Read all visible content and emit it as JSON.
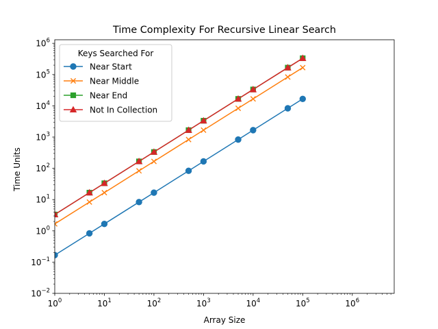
{
  "chart_data": {
    "type": "line",
    "title": "Time Complexity For Recursive Linear Search",
    "xlabel": "Array Size",
    "ylabel": "Time Units",
    "x_scale": "log",
    "y_scale": "log",
    "xlim": [
      1,
      7000000
    ],
    "ylim": [
      0.01,
      1300000
    ],
    "grid": false,
    "legend": {
      "title": "Keys Searched For",
      "placement": "upper-left"
    },
    "x_ticks": [
      {
        "value": 1,
        "base": "10",
        "exp": "0"
      },
      {
        "value": 10,
        "base": "10",
        "exp": "1"
      },
      {
        "value": 100,
        "base": "10",
        "exp": "2"
      },
      {
        "value": 1000,
        "base": "10",
        "exp": "3"
      },
      {
        "value": 10000,
        "base": "10",
        "exp": "4"
      },
      {
        "value": 100000,
        "base": "10",
        "exp": "5"
      },
      {
        "value": 1000000,
        "base": "10",
        "exp": "6"
      }
    ],
    "y_ticks": [
      {
        "value": 0.01,
        "base": "10",
        "exp": "−2"
      },
      {
        "value": 0.1,
        "base": "10",
        "exp": "−1"
      },
      {
        "value": 1,
        "base": "10",
        "exp": "0"
      },
      {
        "value": 10,
        "base": "10",
        "exp": "1"
      },
      {
        "value": 100,
        "base": "10",
        "exp": "2"
      },
      {
        "value": 1000,
        "base": "10",
        "exp": "3"
      },
      {
        "value": 10000,
        "base": "10",
        "exp": "4"
      },
      {
        "value": 100000,
        "base": "10",
        "exp": "5"
      },
      {
        "value": 1000000,
        "base": "10",
        "exp": "6"
      }
    ],
    "x": [
      1,
      5,
      10,
      50,
      100,
      500,
      1000,
      5000,
      10000,
      50000,
      100000
    ],
    "series": [
      {
        "name": "Near Start",
        "color": "#1f77b4",
        "marker": "circle",
        "values": [
          0.167,
          0.833,
          1.667,
          8.33,
          16.67,
          83.3,
          166.7,
          833,
          1667,
          8333,
          16667
        ]
      },
      {
        "name": "Near Middle",
        "color": "#ff7f0e",
        "marker": "x",
        "values": [
          1.667,
          8.33,
          16.67,
          83.3,
          166.7,
          833,
          1667,
          8333,
          16667,
          83333,
          166667
        ]
      },
      {
        "name": "Near End",
        "color": "#2ca02c",
        "marker": "square",
        "values": [
          3.33,
          16.67,
          33.3,
          166.7,
          333,
          1667,
          3333,
          16667,
          33333,
          166667,
          333333
        ]
      },
      {
        "name": "Not In Collection",
        "color": "#d62728",
        "marker": "triangle",
        "values": [
          3.33,
          16.67,
          33.3,
          166.7,
          333,
          1667,
          3333,
          16667,
          33333,
          166667,
          333333
        ]
      }
    ]
  }
}
